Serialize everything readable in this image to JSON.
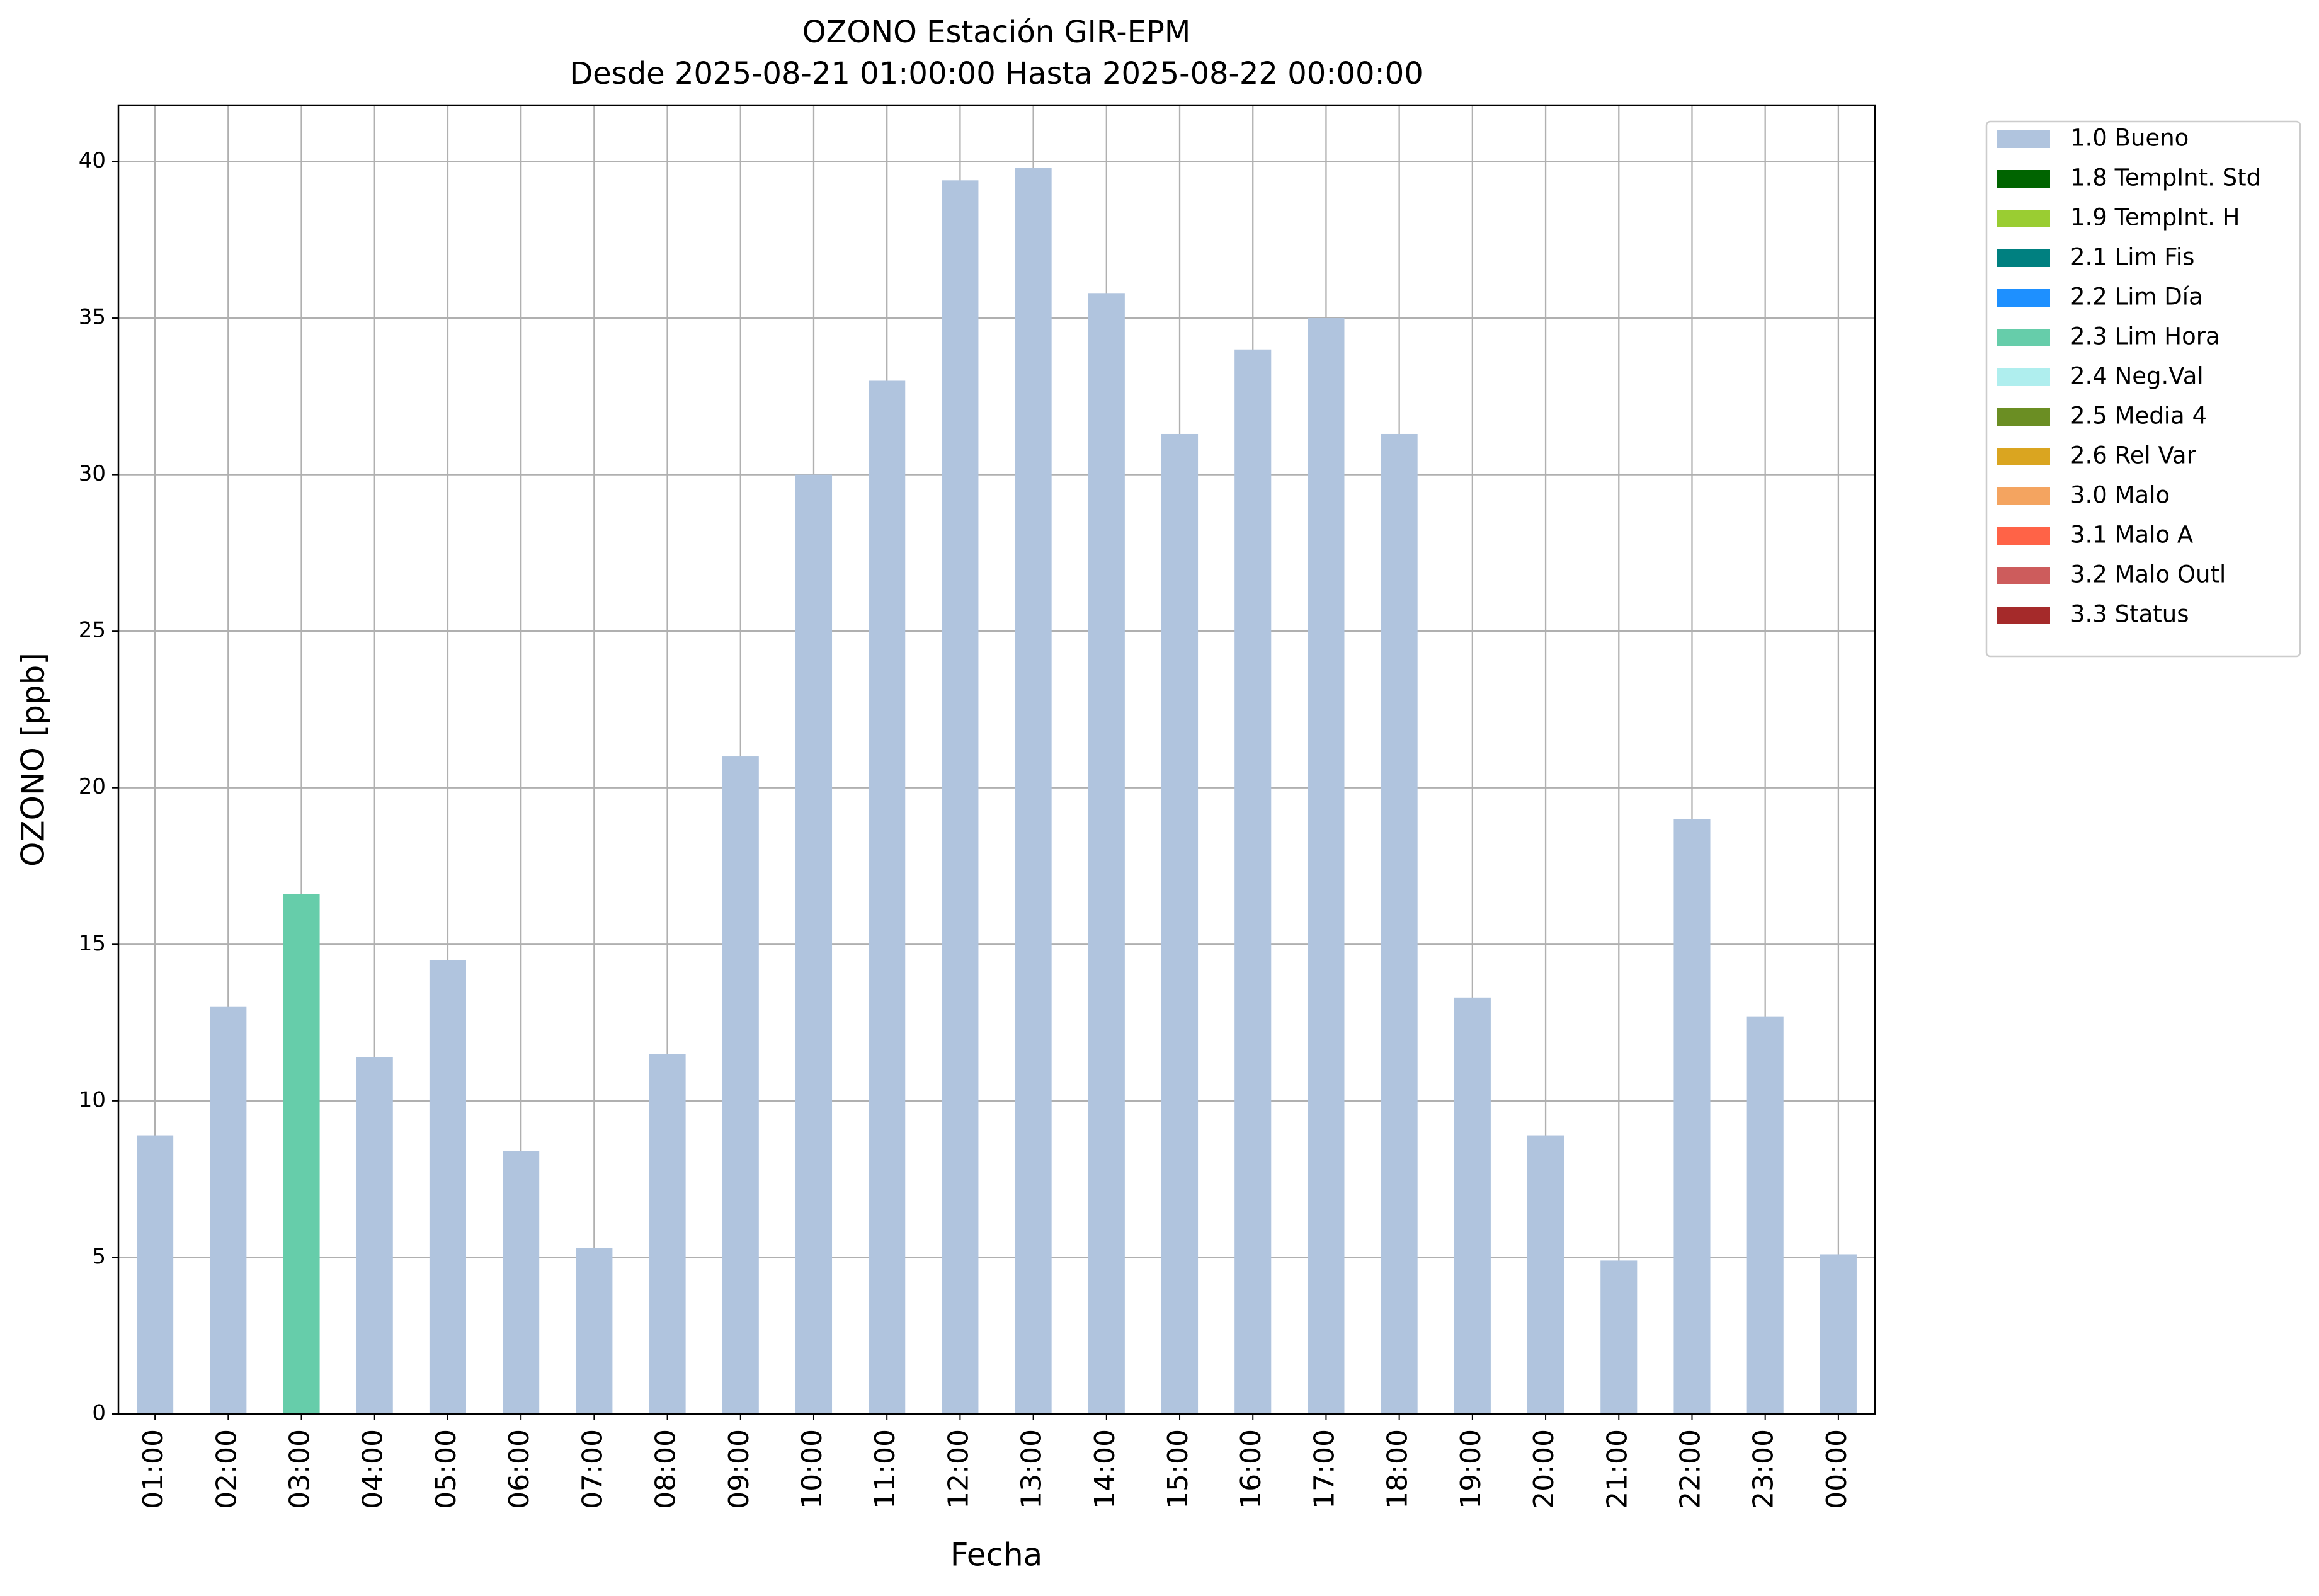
{
  "chart_data": {
    "type": "stacked_bar",
    "title": "OZONO Estación GIR-EPM",
    "subtitle": "Desde 2025-08-21 01:00:00 Hasta 2025-08-22 00:00:00",
    "x_label": "Fecha",
    "y_label": "OZONO [ppb]",
    "categories": [
      "01:00",
      "02:00",
      "03:00",
      "04:00",
      "05:00",
      "06:00",
      "07:00",
      "08:00",
      "09:00",
      "10:00",
      "11:00",
      "12:00",
      "13:00",
      "14:00",
      "15:00",
      "16:00",
      "17:00",
      "18:00",
      "19:00",
      "20:00",
      "21:00",
      "22:00",
      "23:00",
      "00:00"
    ],
    "series": [
      {
        "name": "1.0 Bueno",
        "color": "#b0c4de",
        "values": [
          8.9,
          13.0,
          0,
          11.4,
          14.5,
          8.4,
          5.3,
          11.5,
          21.0,
          30.0,
          33.0,
          39.4,
          39.8,
          35.8,
          31.3,
          34.0,
          35.0,
          31.3,
          13.3,
          8.9,
          4.9,
          19.0,
          12.7,
          5.1
        ]
      },
      {
        "name": "1.8 TempInt. Std",
        "color": "#006400",
        "values": [
          0,
          0,
          0,
          0,
          0,
          0,
          0,
          0,
          0,
          0,
          0,
          0,
          0,
          0,
          0,
          0,
          0,
          0,
          0,
          0,
          0,
          0,
          0,
          0
        ]
      },
      {
        "name": "1.9 TempInt. H",
        "color": "#9acd32",
        "values": [
          0,
          0,
          0,
          0,
          0,
          0,
          0,
          0,
          0,
          0,
          0,
          0,
          0,
          0,
          0,
          0,
          0,
          0,
          0,
          0,
          0,
          0,
          0,
          0
        ]
      },
      {
        "name": "2.1 Lim Fis",
        "color": "#008080",
        "values": [
          0,
          0,
          0,
          0,
          0,
          0,
          0,
          0,
          0,
          0,
          0,
          0,
          0,
          0,
          0,
          0,
          0,
          0,
          0,
          0,
          0,
          0,
          0,
          0
        ]
      },
      {
        "name": "2.2 Lim Día",
        "color": "#1e90ff",
        "values": [
          0,
          0,
          0,
          0,
          0,
          0,
          0,
          0,
          0,
          0,
          0,
          0,
          0,
          0,
          0,
          0,
          0,
          0,
          0,
          0,
          0,
          0,
          0,
          0
        ]
      },
      {
        "name": "2.3 Lim Hora",
        "color": "#66cdaa",
        "values": [
          0,
          0,
          16.6,
          0,
          0,
          0,
          0,
          0,
          0,
          0,
          0,
          0,
          0,
          0,
          0,
          0,
          0,
          0,
          0,
          0,
          0,
          0,
          0,
          0
        ]
      },
      {
        "name": "2.4 Neg.Val",
        "color": "#afeeee",
        "values": [
          0,
          0,
          0,
          0,
          0,
          0,
          0,
          0,
          0,
          0,
          0,
          0,
          0,
          0,
          0,
          0,
          0,
          0,
          0,
          0,
          0,
          0,
          0,
          0
        ]
      },
      {
        "name": "2.5 Media 4",
        "color": "#6b8e23",
        "values": [
          0,
          0,
          0,
          0,
          0,
          0,
          0,
          0,
          0,
          0,
          0,
          0,
          0,
          0,
          0,
          0,
          0,
          0,
          0,
          0,
          0,
          0,
          0,
          0
        ]
      },
      {
        "name": "2.6 Rel Var",
        "color": "#daa520",
        "values": [
          0,
          0,
          0,
          0,
          0,
          0,
          0,
          0,
          0,
          0,
          0,
          0,
          0,
          0,
          0,
          0,
          0,
          0,
          0,
          0,
          0,
          0,
          0,
          0
        ]
      },
      {
        "name": "3.0 Malo",
        "color": "#f4a460",
        "values": [
          0,
          0,
          0,
          0,
          0,
          0,
          0,
          0,
          0,
          0,
          0,
          0,
          0,
          0,
          0,
          0,
          0,
          0,
          0,
          0,
          0,
          0,
          0,
          0
        ]
      },
      {
        "name": "3.1 Malo A",
        "color": "#ff6347",
        "values": [
          0,
          0,
          0,
          0,
          0,
          0,
          0,
          0,
          0,
          0,
          0,
          0,
          0,
          0,
          0,
          0,
          0,
          0,
          0,
          0,
          0,
          0,
          0,
          0
        ]
      },
      {
        "name": "3.2 Malo Outl",
        "color": "#cd5c5c",
        "values": [
          0,
          0,
          0,
          0,
          0,
          0,
          0,
          0,
          0,
          0,
          0,
          0,
          0,
          0,
          0,
          0,
          0,
          0,
          0,
          0,
          0,
          0,
          0,
          0
        ]
      },
      {
        "name": "3.3 Status",
        "color": "#a52a2a",
        "values": [
          0,
          0,
          0,
          0,
          0,
          0,
          0,
          0,
          0,
          0,
          0,
          0,
          0,
          0,
          0,
          0,
          0,
          0,
          0,
          0,
          0,
          0,
          0,
          0
        ]
      }
    ],
    "ylim": [
      0,
      41.8
    ],
    "yticks": [
      0,
      5,
      10,
      15,
      20,
      25,
      30,
      35,
      40
    ],
    "grid": true,
    "legend": "outside-upper-right"
  }
}
